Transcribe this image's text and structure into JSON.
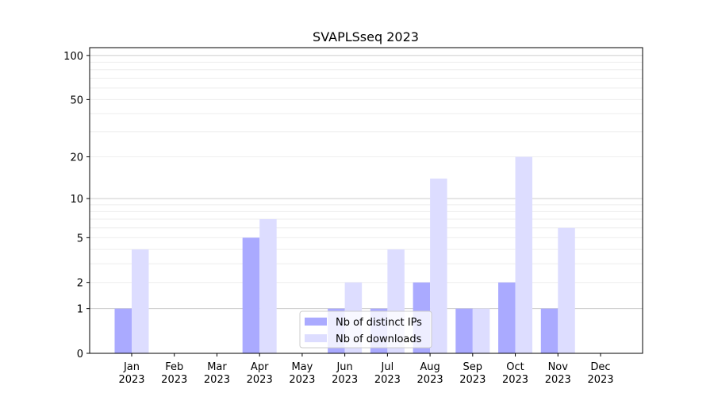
{
  "chart_data": {
    "type": "bar",
    "title": "SVAPLSseq 2023",
    "xlabel": "",
    "ylabel": "",
    "yscale": "log(1+y)",
    "ylim": [
      0,
      113
    ],
    "yticks": [
      0,
      1,
      2,
      5,
      10,
      20,
      50,
      100
    ],
    "categories": [
      "Jan\n2023",
      "Feb\n2023",
      "Mar\n2023",
      "Apr\n2023",
      "May\n2023",
      "Jun\n2023",
      "Jul\n2023",
      "Aug\n2023",
      "Sep\n2023",
      "Oct\n2023",
      "Nov\n2023",
      "Dec\n2023"
    ],
    "series": [
      {
        "name": "Nb of distinct IPs",
        "color": "#aaaaff",
        "values": [
          1,
          0,
          0,
          5,
          0,
          1,
          1,
          2,
          1,
          2,
          1,
          0
        ]
      },
      {
        "name": "Nb of downloads",
        "color": "#ddddff",
        "values": [
          4,
          0,
          0,
          7,
          0,
          2,
          4,
          14,
          1,
          20,
          6,
          0
        ]
      }
    ],
    "legend": "lower-center",
    "grid": true
  }
}
